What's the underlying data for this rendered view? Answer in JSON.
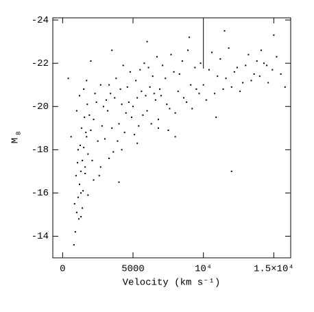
{
  "chart_data": {
    "type": "scatter",
    "xlabel": "Velocity (km s⁻¹)",
    "ylabel": "M",
    "ylabel_subscript": "B",
    "xlim": [
      -700,
      16200
    ],
    "ylim": [
      -13,
      -24.1
    ],
    "xticks": [
      0,
      5000,
      {
        "value": 10000,
        "label": "10⁴"
      },
      {
        "value": 15000,
        "label": "1.5×10⁴"
      }
    ],
    "yticks": [
      -24,
      -22,
      -20,
      -18,
      -16,
      -14
    ],
    "color": "#000000",
    "x": [
      800,
      900,
      1000,
      1100,
      1200,
      1300,
      1400,
      1500,
      1600,
      1700,
      850,
      950,
      1050,
      1150,
      1250,
      1350,
      1450,
      1550,
      1650,
      1750,
      1000,
      1200,
      1400,
      1600,
      1800,
      2000,
      2200,
      2400,
      2600,
      2800,
      1100,
      1300,
      1500,
      1700,
      1900,
      2100,
      2300,
      2500,
      2700,
      2900,
      3000,
      3200,
      3400,
      3600,
      3800,
      4000,
      4200,
      4400,
      4600,
      4800,
      3100,
      3300,
      3500,
      3700,
      3900,
      4100,
      4300,
      4500,
      4700,
      4900,
      5000,
      5200,
      5400,
      5600,
      5800,
      6000,
      6200,
      6400,
      6600,
      6800,
      5100,
      5300,
      5500,
      5700,
      5900,
      6100,
      6300,
      6500,
      6700,
      6900,
      7000,
      7300,
      7600,
      7900,
      8200,
      8500,
      8800,
      9100,
      9400,
      9700,
      7100,
      7400,
      7700,
      8000,
      8300,
      8600,
      8900,
      9200,
      9500,
      9800,
      10000,
      10400,
      10800,
      11200,
      11600,
      12000,
      12400,
      12800,
      13200,
      13600,
      10200,
      10600,
      11000,
      11400,
      11800,
      12200,
      12600,
      13000,
      13400,
      13800,
      14000,
      14300,
      14600,
      14900,
      15200,
      15500,
      15800,
      14100,
      14500,
      15000,
      400,
      600,
      2000,
      3500,
      6000,
      9000,
      12000,
      8000,
      4000,
      11500,
      1300,
      1800,
      2200,
      2700,
      3300,
      4200,
      5300,
      6800,
      7500,
      10900
    ],
    "values": [
      -13.6,
      -14.2,
      -15.1,
      -15.8,
      -16.4,
      -17.0,
      -17.5,
      -18.1,
      -17.2,
      -18.6,
      -15.5,
      -16.8,
      -17.4,
      -14.8,
      -18.2,
      -19.0,
      -16.1,
      -19.5,
      -18.8,
      -20.1,
      -19.8,
      -20.5,
      -15.3,
      -16.9,
      -17.8,
      -18.9,
      -19.4,
      -20.2,
      -16.8,
      -19.1,
      -18.0,
      -16.0,
      -20.8,
      -21.2,
      -19.6,
      -17.5,
      -20.6,
      -18.4,
      -21.0,
      -20.0,
      -18.5,
      -19.8,
      -20.6,
      -17.9,
      -21.3,
      -19.2,
      -20.1,
      -18.8,
      -20.9,
      -21.6,
      -20.3,
      -21.0,
      -19.0,
      -20.4,
      -18.4,
      -20.8,
      -21.9,
      -19.7,
      -20.2,
      -19.5,
      -20.0,
      -21.2,
      -19.1,
      -20.7,
      -22.0,
      -19.8,
      -20.9,
      -21.4,
      -20.3,
      -19.4,
      -18.7,
      -20.4,
      -21.7,
      -19.6,
      -20.5,
      -21.8,
      -19.2,
      -20.6,
      -22.3,
      -20.8,
      -20.5,
      -21.3,
      -19.9,
      -21.6,
      -20.7,
      -22.1,
      -20.2,
      -21.0,
      -21.8,
      -20.6,
      -21.9,
      -20.1,
      -22.4,
      -19.7,
      -21.5,
      -20.4,
      -22.6,
      -19.9,
      -20.8,
      -22.0,
      -21.0,
      -21.7,
      -20.6,
      -22.2,
      -21.3,
      -20.9,
      -21.8,
      -21.1,
      -22.4,
      -21.5,
      -20.3,
      -22.5,
      -21.4,
      -20.8,
      -22.7,
      -21.6,
      -20.7,
      -21.9,
      -21.2,
      -22.1,
      -21.4,
      -22.0,
      -21.1,
      -21.7,
      -22.3,
      -21.5,
      -20.9,
      -22.6,
      -21.9,
      -23.3,
      -21.3,
      -18.6,
      -22.1,
      -22.6,
      -23.0,
      -23.2,
      -17.0,
      -18.6,
      -16.5,
      -23.5,
      -14.9,
      -15.9,
      -16.6,
      -17.2,
      -17.6,
      -18.0,
      -18.3,
      -19.0,
      -18.9,
      -19.5
    ]
  }
}
